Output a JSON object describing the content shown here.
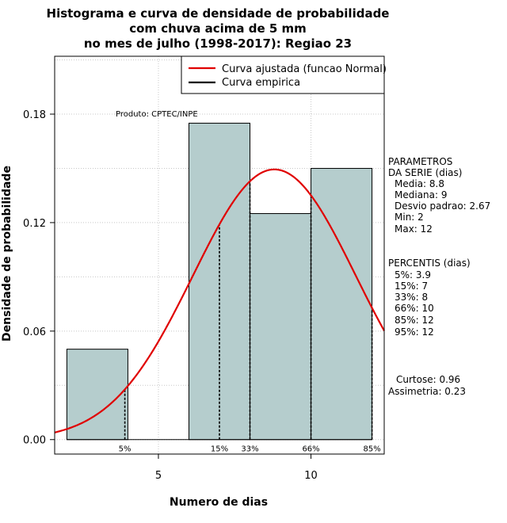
{
  "chart_data": {
    "type": "bar",
    "title_lines": [
      "Histograma e curva de densidade de probabilidade",
      "com chuva acima de 5 mm",
      "no mes de julho (1998-2017): Regiao 23"
    ],
    "xlabel": "Numero de dias",
    "ylabel": "Densidade de probabilidade",
    "xlim": [
      1.6,
      12.4
    ],
    "ylim": [
      -0.008,
      0.212
    ],
    "x_ticks": [
      5,
      10
    ],
    "y_ticks": [
      0.0,
      0.06,
      0.12,
      0.18
    ],
    "y_tick_labels": [
      "0.00",
      "0.06",
      "0.12",
      "0.18"
    ],
    "bins": [
      {
        "x0": 2,
        "x1": 4,
        "density": 0.05
      },
      {
        "x0": 4,
        "x1": 6,
        "density": 0.0
      },
      {
        "x0": 6,
        "x1": 8,
        "density": 0.175
      },
      {
        "x0": 8,
        "x1": 10,
        "density": 0.125
      },
      {
        "x0": 10,
        "x1": 12,
        "density": 0.15
      }
    ],
    "bar_color": "#b5cdcd",
    "normal_fit": {
      "mean": 8.8,
      "sd": 2.67,
      "color": "#e00000"
    },
    "percentile_lines": [
      {
        "label": "5%",
        "x": 3.9
      },
      {
        "label": "15%",
        "x": 7
      },
      {
        "label": "33%",
        "x": 8
      },
      {
        "label": "66%",
        "x": 10
      },
      {
        "label": "85%",
        "x": 12
      }
    ],
    "legend": [
      {
        "label": "Curva ajustada (funcao Normal)",
        "color": "#e00000"
      },
      {
        "label": "Curva empirica",
        "color": "#000000"
      }
    ],
    "product_note": "Produto: CPTEC/INPE",
    "parametros": {
      "header": [
        "PARAMETROS",
        "DA SERIE (dias)"
      ],
      "lines": [
        "Media: 8.8",
        "Mediana: 9",
        "Desvio padrao: 2.67",
        "Min: 2",
        "Max: 12"
      ]
    },
    "percentis": {
      "header": "PERCENTIS (dias)",
      "lines": [
        "5%: 3.9",
        "15%: 7",
        "33%: 8",
        "66%: 10",
        "85%: 12",
        "95%: 12"
      ]
    },
    "shape_stats": [
      "Curtose: 0.96",
      "Assimetria: 0.23"
    ]
  }
}
